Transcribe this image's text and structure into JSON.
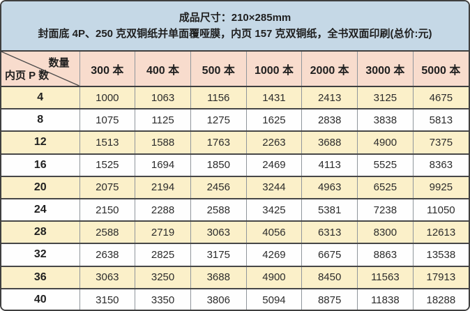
{
  "header": {
    "line1": "成品尺寸：210×285mm",
    "line2": "封面底 4P、250 克双铜纸并单面覆哑膜，内页 157 克双铜纸，全书双面印刷(总价:元)"
  },
  "table": {
    "corner": {
      "top_label": "数量",
      "bottom_label": "内页 P 数"
    },
    "columns": [
      "300 本",
      "400 本",
      "500 本",
      "1000 本",
      "2000 本",
      "3000 本",
      "5000 本"
    ],
    "rows": [
      {
        "p": "4",
        "values": [
          "1000",
          "1063",
          "1156",
          "1431",
          "2413",
          "3125",
          "4675"
        ]
      },
      {
        "p": "8",
        "values": [
          "1075",
          "1125",
          "1275",
          "1625",
          "2838",
          "3838",
          "5813"
        ]
      },
      {
        "p": "12",
        "values": [
          "1513",
          "1588",
          "1763",
          "2263",
          "3688",
          "4900",
          "7375"
        ]
      },
      {
        "p": "16",
        "values": [
          "1525",
          "1694",
          "1850",
          "2469",
          "4113",
          "5525",
          "8363"
        ]
      },
      {
        "p": "20",
        "values": [
          "2075",
          "2194",
          "2456",
          "3244",
          "4963",
          "6525",
          "9925"
        ]
      },
      {
        "p": "24",
        "values": [
          "2150",
          "2288",
          "2588",
          "3425",
          "5381",
          "7238",
          "11050"
        ]
      },
      {
        "p": "28",
        "values": [
          "2588",
          "2719",
          "3063",
          "4056",
          "6313",
          "8300",
          "12613"
        ]
      },
      {
        "p": "32",
        "values": [
          "2638",
          "2825",
          "3175",
          "4269",
          "6675",
          "8863",
          "13538"
        ]
      },
      {
        "p": "36",
        "values": [
          "3063",
          "3250",
          "3688",
          "4900",
          "8450",
          "11563",
          "17913"
        ]
      },
      {
        "p": "40",
        "values": [
          "3150",
          "3350",
          "3806",
          "5094",
          "8875",
          "11838",
          "18288"
        ]
      }
    ]
  },
  "colors": {
    "title_bg": "#c5d8e6",
    "column_header_bg": "#f8dccd",
    "row_alt_bg": "#fbf0c9",
    "row_bg": "#fefefe",
    "border_dark": "#3f3f3f",
    "border_light": "#8f959b",
    "text": "#1f1f1f"
  }
}
